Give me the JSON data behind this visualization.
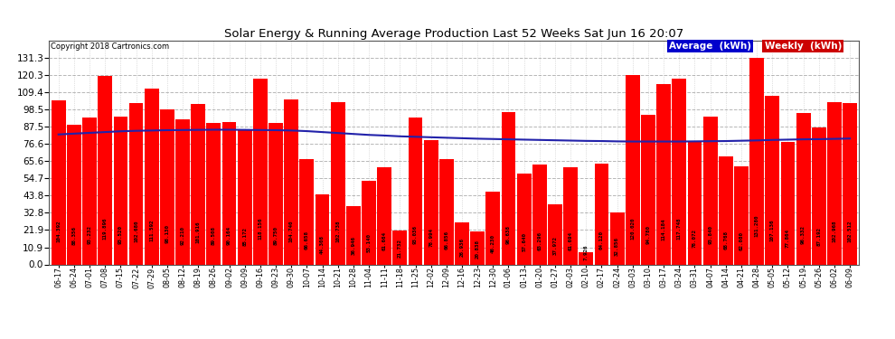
{
  "title": "Solar Energy & Running Average Production Last 52 Weeks Sat Jun 16 20:07",
  "copyright": "Copyright 2018 Cartronics.com",
  "bar_color": "#FF0000",
  "avg_line_color": "#2222AA",
  "background_color": "#FFFFFF",
  "grid_color": "#888888",
  "ylim": [
    0.0,
    142.0
  ],
  "yticks": [
    0.0,
    10.9,
    21.9,
    32.8,
    43.8,
    54.7,
    65.6,
    76.6,
    87.5,
    98.5,
    109.4,
    120.3,
    131.3
  ],
  "categories": [
    "06-17",
    "06-24",
    "07-01",
    "07-08",
    "07-15",
    "07-22",
    "07-29",
    "08-05",
    "08-12",
    "08-19",
    "08-26",
    "09-02",
    "09-09",
    "09-16",
    "09-23",
    "09-30",
    "10-07",
    "10-14",
    "10-21",
    "10-28",
    "11-04",
    "11-11",
    "11-18",
    "11-25",
    "12-02",
    "12-09",
    "12-16",
    "12-23",
    "12-30",
    "01-06",
    "01-13",
    "01-20",
    "01-27",
    "02-03",
    "02-10",
    "02-17",
    "02-24",
    "03-03",
    "03-10",
    "03-17",
    "03-24",
    "03-31",
    "04-07",
    "04-14",
    "04-21",
    "04-28",
    "05-05",
    "05-12",
    "05-19",
    "05-26",
    "06-02",
    "06-09"
  ],
  "values": [
    104.392,
    88.356,
    93.232,
    119.896,
    93.52,
    102.68,
    111.592,
    98.13,
    92.21,
    101.916,
    89.508,
    90.164,
    85.172,
    118.156,
    89.75,
    104.74,
    66.658,
    44.308,
    102.738,
    36.946,
    53.14,
    61.664,
    21.732,
    93.036,
    78.994,
    66.856,
    26.936,
    20.838,
    46.23,
    96.638,
    57.64,
    63.296,
    37.972,
    61.694,
    7.926,
    64.12,
    32.856,
    120.02,
    94.78,
    114.184,
    117.748,
    78.072,
    93.84,
    68.768,
    62.08,
    131.28,
    107.136,
    77.864,
    96.332,
    87.192,
    102.968,
    102.512
  ],
  "avg_values": [
    82.5,
    83.0,
    83.5,
    84.0,
    84.5,
    84.8,
    85.0,
    85.2,
    85.3,
    85.4,
    85.5,
    85.5,
    85.4,
    85.3,
    85.2,
    85.0,
    84.6,
    84.0,
    83.4,
    82.8,
    82.2,
    81.8,
    81.3,
    81.0,
    80.7,
    80.4,
    80.1,
    79.8,
    79.6,
    79.4,
    79.2,
    79.0,
    78.8,
    78.6,
    78.4,
    78.3,
    78.1,
    78.0,
    78.0,
    78.0,
    78.0,
    78.1,
    78.2,
    78.3,
    78.5,
    78.7,
    79.0,
    79.2,
    79.4,
    79.5,
    79.7,
    79.9
  ],
  "legend_avg_bg": "#0000CC",
  "legend_weekly_bg": "#CC0000",
  "legend_avg_text": "Average  (kWh)",
  "legend_weekly_text": "Weekly  (kWh)"
}
